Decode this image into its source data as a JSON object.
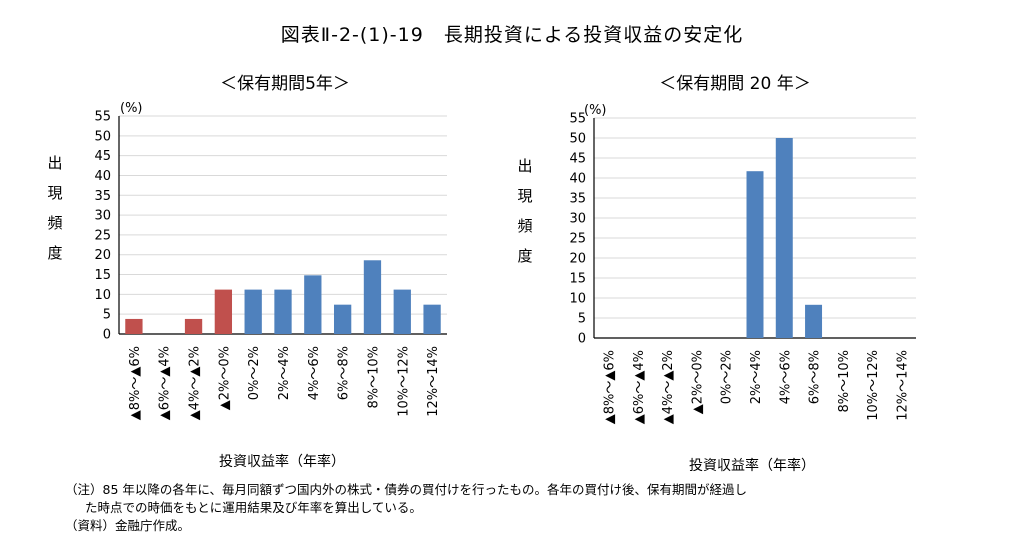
{
  "title": "図表Ⅱ-2-(1)-19　長期投資による投資収益の安定化",
  "chart_data": [
    {
      "type": "bar",
      "title": "＜保有期間5年＞",
      "unit": "(%)",
      "ylabel": "出現頻度",
      "xlabel": "投資収益率（年率）",
      "ylim": [
        0,
        55
      ],
      "yticks": [
        "0",
        "5",
        "10",
        "15",
        "20",
        "25",
        "30",
        "35",
        "40",
        "45",
        "50",
        "55"
      ],
      "grid": true,
      "categories": [
        "▲8%～▲6%",
        "▲6%～▲4%",
        "▲4%～▲2%",
        "▲2%～0%",
        "0%～2%",
        "2%～4%",
        "4%～6%",
        "6%～8%",
        "8%～10%",
        "10%～12%",
        "12%～14%"
      ],
      "values": [
        3.8,
        0,
        3.8,
        11.2,
        11.2,
        11.2,
        14.8,
        7.4,
        18.6,
        11.2,
        7.4
      ],
      "bar_colors": [
        "#c0504d",
        "#c0504d",
        "#c0504d",
        "#c0504d",
        "#4f81bd",
        "#4f81bd",
        "#4f81bd",
        "#4f81bd",
        "#4f81bd",
        "#4f81bd",
        "#4f81bd"
      ]
    },
    {
      "type": "bar",
      "title": "＜保有期間 20 年＞",
      "unit": "(%)",
      "ylabel": "出現頻度",
      "xlabel": "投資収益率（年率）",
      "ylim": [
        0,
        55
      ],
      "yticks": [
        "0",
        "5",
        "10",
        "15",
        "20",
        "25",
        "30",
        "35",
        "40",
        "45",
        "50",
        "55"
      ],
      "grid": true,
      "categories": [
        "▲8%～▲6%",
        "▲6%～▲4%",
        "▲4%～▲2%",
        "▲2%～0%",
        "0%～2%",
        "2%～4%",
        "4%～6%",
        "6%～8%",
        "8%～10%",
        "10%～12%",
        "12%～14%"
      ],
      "values": [
        0,
        0,
        0,
        0,
        0,
        41.7,
        50.0,
        8.3,
        0,
        0,
        0
      ],
      "bar_colors": [
        "#4f81bd",
        "#4f81bd",
        "#4f81bd",
        "#4f81bd",
        "#4f81bd",
        "#4f81bd",
        "#4f81bd",
        "#4f81bd",
        "#4f81bd",
        "#4f81bd",
        "#4f81bd"
      ]
    }
  ],
  "notes": {
    "line1": "（注）85 年以降の各年に、毎月同額ずつ国内外の株式・債券の買付けを行ったもの。各年の買付け後、保有期間が経過し",
    "line2": "た時点での時価をもとに運用結果及び年率を算出している。",
    "line3": "（資料）金融庁作成。"
  }
}
